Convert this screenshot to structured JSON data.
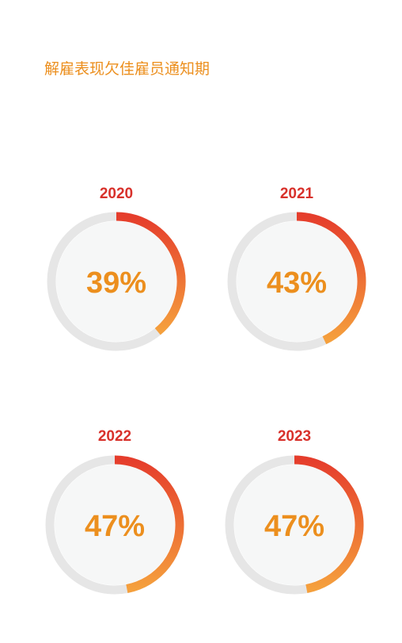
{
  "page": {
    "title": "解雇表现欠佳雇员通知期"
  },
  "colors": {
    "title": "#ec8f1e",
    "year_label": "#d8312b",
    "value_label": "#ec8f1e",
    "track": "#e6e6e6",
    "inner_fill": "#f6f7f7",
    "progress_start": "#e53d2c",
    "progress_end": "#f5a03d"
  },
  "chart_data": {
    "type": "pie",
    "subtype": "donut-progress",
    "title": "",
    "charts": [
      {
        "year": "2020",
        "value": 39,
        "label": "39%"
      },
      {
        "year": "2021",
        "value": 43,
        "label": "43%"
      },
      {
        "year": "2022",
        "value": 47,
        "label": "47%"
      },
      {
        "year": "2023",
        "value": 47,
        "label": "47%"
      }
    ]
  }
}
